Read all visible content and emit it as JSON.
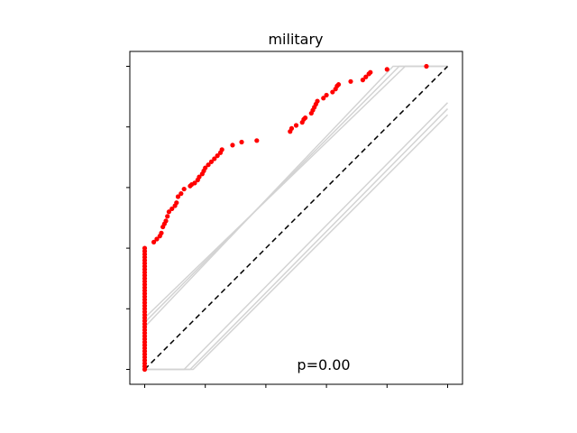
{
  "chart_data": {
    "type": "scatter",
    "title": "military",
    "annotation": "p=0.00",
    "xlabel": "",
    "ylabel": "",
    "xlim": [
      0,
      1
    ],
    "ylim": [
      0,
      1
    ],
    "grid": false,
    "reference_line": {
      "from": [
        0,
        0
      ],
      "to": [
        1,
        1
      ],
      "style": "dashed",
      "color": "#000000"
    },
    "colors": {
      "points": "#ff0000",
      "bands": "#d3d3d3",
      "reference": "#000000"
    },
    "bands": [
      {
        "points": [
          [
            0,
            0.14
          ],
          [
            0.82,
            1.0
          ],
          [
            1.0,
            1.0
          ]
        ]
      },
      {
        "points": [
          [
            0,
            0.155
          ],
          [
            0.84,
            1.0
          ],
          [
            1.0,
            1.0
          ]
        ]
      },
      {
        "points": [
          [
            0,
            0.17
          ],
          [
            0.86,
            1.0
          ],
          [
            1.0,
            1.0
          ]
        ]
      },
      {
        "points": [
          [
            0,
            0.0
          ],
          [
            0.13,
            0.0
          ],
          [
            1.0,
            0.88
          ]
        ]
      },
      {
        "points": [
          [
            0,
            0.0
          ],
          [
            0.15,
            0.0
          ],
          [
            1.0,
            0.86
          ]
        ]
      },
      {
        "points": [
          [
            0,
            0.0
          ],
          [
            0.16,
            0.0
          ],
          [
            1.0,
            0.84
          ]
        ]
      }
    ],
    "points": [
      [
        0,
        0.0
      ],
      [
        0,
        0.01
      ],
      [
        0,
        0.02
      ],
      [
        0,
        0.03
      ],
      [
        0,
        0.04
      ],
      [
        0,
        0.05
      ],
      [
        0,
        0.06
      ],
      [
        0,
        0.07
      ],
      [
        0,
        0.08
      ],
      [
        0,
        0.09
      ],
      [
        0,
        0.1
      ],
      [
        0,
        0.11
      ],
      [
        0,
        0.12
      ],
      [
        0,
        0.13
      ],
      [
        0,
        0.14
      ],
      [
        0,
        0.15
      ],
      [
        0,
        0.16
      ],
      [
        0,
        0.17
      ],
      [
        0,
        0.18
      ],
      [
        0,
        0.19
      ],
      [
        0,
        0.2
      ],
      [
        0,
        0.21
      ],
      [
        0,
        0.22
      ],
      [
        0,
        0.23
      ],
      [
        0,
        0.24
      ],
      [
        0,
        0.25
      ],
      [
        0,
        0.26
      ],
      [
        0,
        0.27
      ],
      [
        0,
        0.28
      ],
      [
        0,
        0.29
      ],
      [
        0,
        0.3
      ],
      [
        0,
        0.31
      ],
      [
        0,
        0.32
      ],
      [
        0,
        0.33
      ],
      [
        0,
        0.34
      ],
      [
        0,
        0.35
      ],
      [
        0,
        0.36
      ],
      [
        0,
        0.37
      ],
      [
        0,
        0.38
      ],
      [
        0,
        0.39
      ],
      [
        0,
        0.4
      ],
      [
        0.03,
        0.42
      ],
      [
        0.04,
        0.43
      ],
      [
        0.05,
        0.44
      ],
      [
        0.055,
        0.45
      ],
      [
        0.06,
        0.47
      ],
      [
        0.065,
        0.48
      ],
      [
        0.07,
        0.49
      ],
      [
        0.075,
        0.505
      ],
      [
        0.08,
        0.52
      ],
      [
        0.09,
        0.53
      ],
      [
        0.1,
        0.54
      ],
      [
        0.105,
        0.55
      ],
      [
        0.11,
        0.57
      ],
      [
        0.12,
        0.58
      ],
      [
        0.13,
        0.595
      ],
      [
        0.15,
        0.605
      ],
      [
        0.155,
        0.61
      ],
      [
        0.165,
        0.615
      ],
      [
        0.175,
        0.625
      ],
      [
        0.18,
        0.635
      ],
      [
        0.19,
        0.645
      ],
      [
        0.195,
        0.655
      ],
      [
        0.2,
        0.665
      ],
      [
        0.21,
        0.675
      ],
      [
        0.22,
        0.685
      ],
      [
        0.23,
        0.695
      ],
      [
        0.24,
        0.705
      ],
      [
        0.25,
        0.715
      ],
      [
        0.255,
        0.725
      ],
      [
        0.29,
        0.74
      ],
      [
        0.32,
        0.75
      ],
      [
        0.37,
        0.755
      ],
      [
        0.48,
        0.785
      ],
      [
        0.485,
        0.795
      ],
      [
        0.5,
        0.805
      ],
      [
        0.52,
        0.815
      ],
      [
        0.525,
        0.825
      ],
      [
        0.53,
        0.83
      ],
      [
        0.55,
        0.845
      ],
      [
        0.555,
        0.855
      ],
      [
        0.56,
        0.865
      ],
      [
        0.565,
        0.875
      ],
      [
        0.57,
        0.885
      ],
      [
        0.59,
        0.895
      ],
      [
        0.6,
        0.905
      ],
      [
        0.62,
        0.915
      ],
      [
        0.63,
        0.925
      ],
      [
        0.635,
        0.935
      ],
      [
        0.64,
        0.94
      ],
      [
        0.68,
        0.95
      ],
      [
        0.72,
        0.955
      ],
      [
        0.73,
        0.965
      ],
      [
        0.74,
        0.975
      ],
      [
        0.745,
        0.98
      ],
      [
        0.8,
        0.99
      ],
      [
        0.93,
        1.0
      ]
    ]
  }
}
